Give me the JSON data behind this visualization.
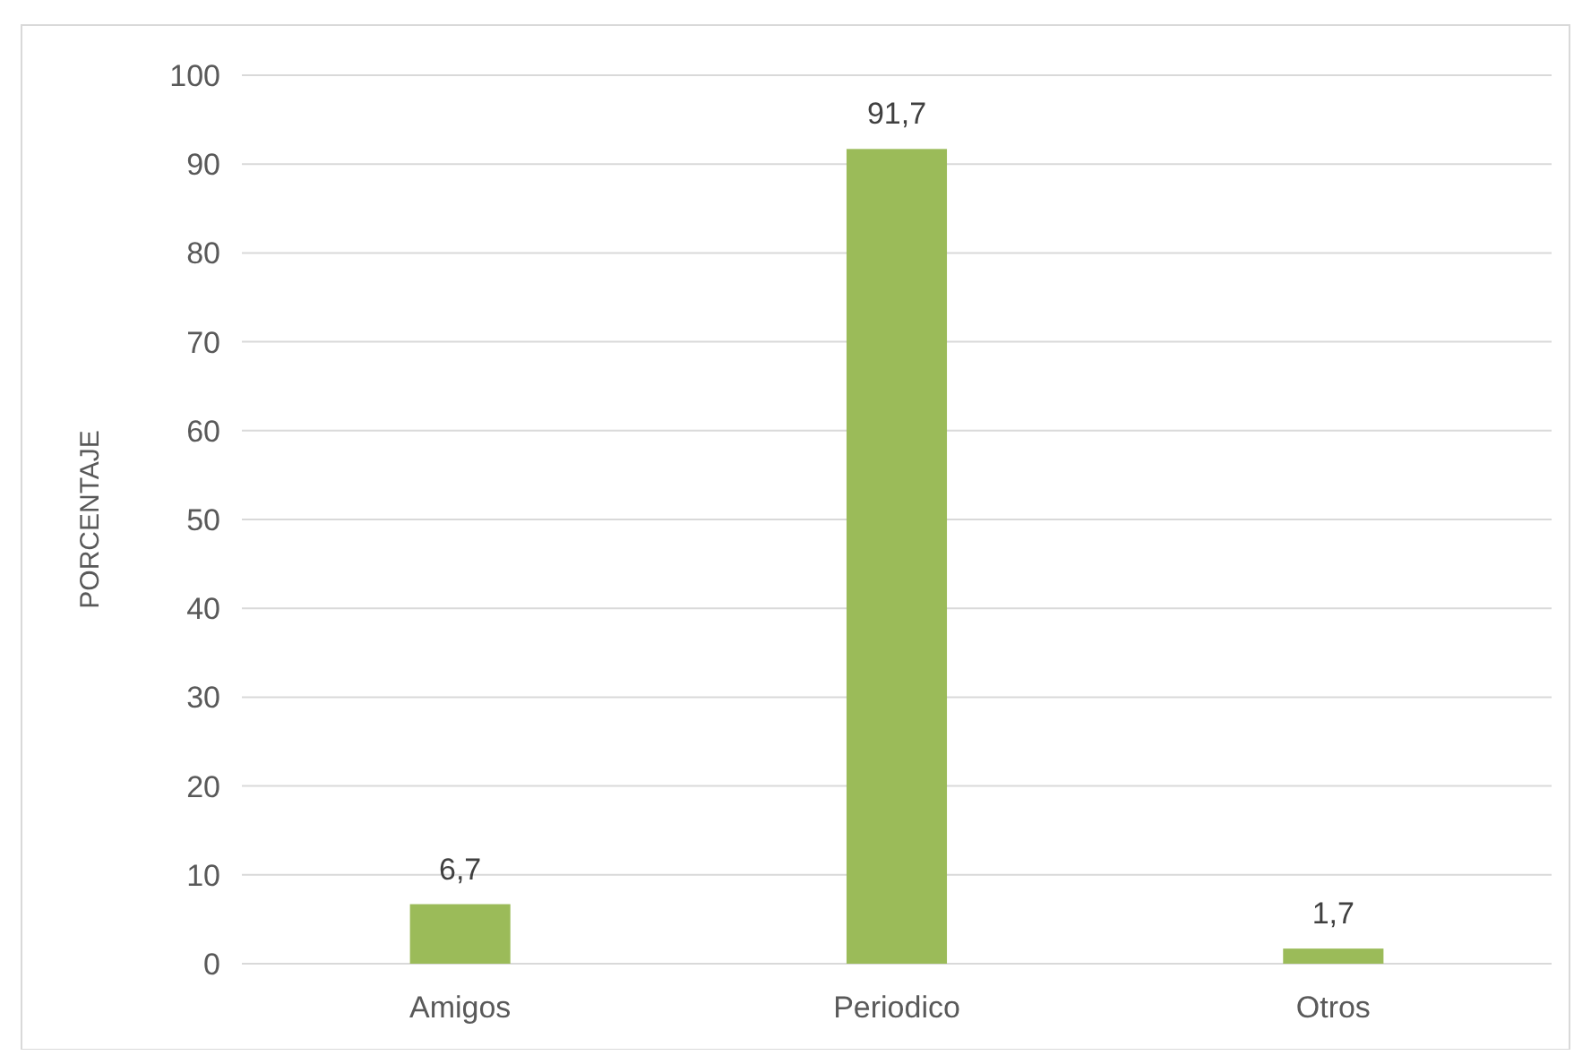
{
  "chart_data": {
    "type": "bar",
    "ylabel": "PORCENTAJE",
    "categories": [
      "Amigos",
      "Periodico",
      "Otros"
    ],
    "values": [
      6.7,
      91.7,
      1.7
    ],
    "color": "#9bbb59",
    "ylim": [
      0,
      100
    ],
    "yticks": [
      0,
      10,
      20,
      30,
      40,
      50,
      60,
      70,
      80,
      90,
      100
    ],
    "grid": "y",
    "value_labels": [
      "6,7",
      "91,7",
      "1,7"
    ]
  }
}
